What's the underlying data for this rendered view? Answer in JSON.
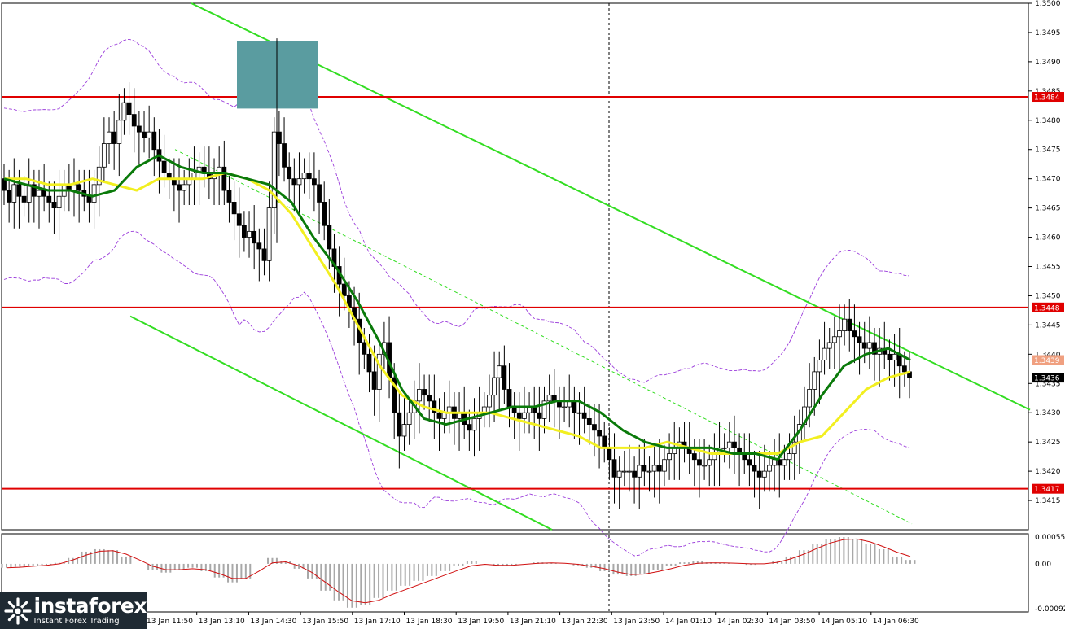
{
  "chart_data": [
    {
      "type": "candlestick",
      "title": "",
      "ylim": [
        1.341,
        1.35
      ],
      "y_ticks": [
        "1.3500",
        "1.3495",
        "1.3490",
        "1.3485",
        "1.3480",
        "1.3475",
        "1.3470",
        "1.3465",
        "1.3460",
        "1.3455",
        "1.3450",
        "1.3445",
        "1.3440",
        "1.3435",
        "1.3430",
        "1.3425",
        "1.3420",
        "1.3415"
      ],
      "x_ticks": [
        "13 Jan 11:50",
        "13 Jan 13:10",
        "13 Jan 14:30",
        "13 Jan 15:50",
        "13 Jan 17:10",
        "13 Jan 18:30",
        "13 Jan 19:50",
        "13 Jan 21:10",
        "13 Jan 22:30",
        "13 Jan 23:50",
        "14 Jan 01:10",
        "14 Jan 02:30",
        "14 Jan 03:50",
        "14 Jan 05:10",
        "14 Jan 06:30"
      ],
      "levels": [
        {
          "name": "resistance",
          "value": 1.3484,
          "label": "1.3484"
        },
        {
          "name": "resistance",
          "value": 1.3448,
          "label": "1.3448"
        },
        {
          "name": "support",
          "value": 1.3417,
          "label": "1.3417"
        }
      ],
      "current_price": {
        "value": 1.3439,
        "label": "1.3439"
      },
      "last_price": {
        "value": 1.3436,
        "label": "1.3436"
      },
      "grid": false,
      "colors": {
        "level": "#e00000",
        "ma_fast": "#0a7a0a",
        "ma_slow": "#f2ef20",
        "trend": "#33dd22",
        "bands": "#9b3ddb",
        "highlight": "#5a9ca0"
      },
      "close": [
        1.3468,
        1.3466,
        1.3469,
        1.3467,
        1.3466,
        1.3469,
        1.3467,
        1.3468,
        1.3467,
        1.3466,
        1.3465,
        1.3467,
        1.3469,
        1.3468,
        1.3469,
        1.3468,
        1.3467,
        1.3466,
        1.3469,
        1.3472,
        1.3476,
        1.3478,
        1.3476,
        1.348,
        1.3483,
        1.3481,
        1.3479,
        1.3478,
        1.3477,
        1.3478,
        1.3475,
        1.3473,
        1.3471,
        1.347,
        1.3469,
        1.3468,
        1.3469,
        1.347,
        1.3471,
        1.3472,
        1.3471,
        1.347,
        1.3471,
        1.3472,
        1.3468,
        1.3466,
        1.3464,
        1.3462,
        1.346,
        1.3461,
        1.3459,
        1.3458,
        1.3456,
        1.3465,
        1.3478,
        1.3476,
        1.3472,
        1.347,
        1.3469,
        1.347,
        1.3471,
        1.347,
        1.3469,
        1.3466,
        1.3462,
        1.3458,
        1.3455,
        1.3452,
        1.345,
        1.3448,
        1.3446,
        1.3442,
        1.344,
        1.3437,
        1.3434,
        1.344,
        1.3442,
        1.3436,
        1.343,
        1.3426,
        1.3428,
        1.343,
        1.3432,
        1.3434,
        1.3433,
        1.3432,
        1.343,
        1.3429,
        1.343,
        1.3431,
        1.3429,
        1.343,
        1.3428,
        1.3427,
        1.3429,
        1.343,
        1.3431,
        1.3433,
        1.3436,
        1.3438,
        1.3434,
        1.3431,
        1.343,
        1.3429,
        1.343,
        1.3431,
        1.343,
        1.3429,
        1.3432,
        1.3433,
        1.3432,
        1.3431,
        1.3431,
        1.3432,
        1.343,
        1.343,
        1.3429,
        1.3428,
        1.3427,
        1.3426,
        1.3424,
        1.3422,
        1.3419,
        1.342,
        1.342,
        1.342,
        1.3419,
        1.3421,
        1.342,
        1.342,
        1.3421,
        1.342,
        1.3422,
        1.3423,
        1.3424,
        1.3425,
        1.3424,
        1.3423,
        1.3422,
        1.3421,
        1.3421,
        1.3422,
        1.3423,
        1.3424,
        1.3424,
        1.3425,
        1.3424,
        1.3423,
        1.3422,
        1.3421,
        1.342,
        1.3419,
        1.342,
        1.3421,
        1.3422,
        1.3421,
        1.3422,
        1.3423,
        1.3425,
        1.3428,
        1.3431,
        1.3434,
        1.3437,
        1.3439,
        1.3441,
        1.3442,
        1.3443,
        1.3444,
        1.3446,
        1.3444,
        1.3443,
        1.3442,
        1.3441,
        1.3442,
        1.344,
        1.3441,
        1.344,
        1.3439,
        1.344,
        1.3438,
        1.3437,
        1.3436
      ],
      "ma_fast": [
        1.347,
        1.3469,
        1.3468,
        1.3468,
        1.3467,
        1.3468,
        1.3472,
        1.3474,
        1.3472,
        1.3471,
        1.3471,
        1.347,
        1.3469,
        1.3466,
        1.346,
        1.3455,
        1.3449,
        1.3442,
        1.3434,
        1.3429,
        1.3428,
        1.3429,
        1.343,
        1.3431,
        1.3431,
        1.3432,
        1.3432,
        1.343,
        1.3427,
        1.3425,
        1.3424,
        1.3424,
        1.3424,
        1.3423,
        1.3423,
        1.3422,
        1.3427,
        1.3433,
        1.3438,
        1.344,
        1.3441,
        1.3439
      ],
      "ma_slow": [
        1.347,
        1.347,
        1.3469,
        1.3469,
        1.347,
        1.3469,
        1.3468,
        1.347,
        1.347,
        1.347,
        1.3471,
        1.347,
        1.3468,
        1.3464,
        1.3458,
        1.3452,
        1.3445,
        1.3438,
        1.3433,
        1.3431,
        1.343,
        1.343,
        1.343,
        1.3429,
        1.3428,
        1.3427,
        1.3426,
        1.3424,
        1.3424,
        1.3424,
        1.3425,
        1.3424,
        1.3423,
        1.3423,
        1.3423,
        1.3423,
        1.3425,
        1.3426,
        1.343,
        1.3434,
        1.3436,
        1.3437
      ]
    },
    {
      "type": "histogram",
      "title": "",
      "ylim": [
        -0.00092,
        0.00055
      ],
      "y_ticks": [
        "0.00055",
        "0.00",
        "-0.00092"
      ],
      "values": [
        -8e-05,
        -6e-05,
        -4e-05,
        -2e-05,
        2e-05,
        0.00012,
        0.00025,
        0.0003,
        0.00028,
        0.00015,
        0.0,
        -0.00012,
        -0.00018,
        -0.00012,
        -8e-05,
        -0.00015,
        -0.00028,
        -0.00038,
        -0.0003,
        0.0,
        0.00012,
        5e-05,
        -0.0001,
        -0.0003,
        -0.00055,
        -0.00075,
        -0.0009,
        -0.00085,
        -0.0007,
        -0.00055,
        -0.00045,
        -0.00035,
        -0.00025,
        -0.00015,
        -5e-05,
        5e-05,
        0.0,
        -5e-05,
        -3e-05,
        0.0,
        3e-05,
        2e-05,
        0.0,
        -3e-05,
        -8e-05,
        -0.00015,
        -0.00022,
        -0.00025,
        -0.0002,
        -0.00012,
        -5e-05,
        3e-05,
        5e-05,
        3e-05,
        2e-05,
        0.0,
        -2e-05,
        0.0,
        5e-05,
        0.00015,
        0.00028,
        0.0004,
        0.0005,
        0.00055,
        0.0005,
        0.0004,
        0.0003,
        0.00015,
        8e-05
      ],
      "signal": [
        -8e-05,
        -7e-05,
        -5e-05,
        -3e-05,
        0.0,
        8e-05,
        0.00018,
        0.00026,
        0.00027,
        0.0002,
        8e-05,
        -5e-05,
        -0.00012,
        -0.00012,
        -0.0001,
        -0.00012,
        -0.0002,
        -0.0003,
        -0.0003,
        -0.00015,
        2e-05,
        4e-05,
        -4e-05,
        -0.00018,
        -0.00038,
        -0.00058,
        -0.00076,
        -0.0008,
        -0.00075,
        -0.00063,
        -0.00053,
        -0.00043,
        -0.00033,
        -0.00023,
        -0.00013,
        -4e-05,
        -1e-05,
        -3e-05,
        -3e-05,
        -1e-05,
        1e-05,
        2e-05,
        1e-05,
        -1e-05,
        -5e-05,
        -0.0001,
        -0.00017,
        -0.00022,
        -0.00021,
        -0.00016,
        -0.0001,
        -3e-05,
        1e-05,
        2e-05,
        2e-05,
        1e-05,
        0.0,
        0.0,
        3e-05,
        0.0001,
        0.0002,
        0.00032,
        0.00043,
        0.0005,
        0.00051,
        0.00045,
        0.00035,
        0.00024,
        0.00015
      ]
    }
  ],
  "logo": {
    "icon": "instaforex-logo-icon",
    "brand": "instaforex",
    "tagline": "Instant Forex Trading"
  }
}
